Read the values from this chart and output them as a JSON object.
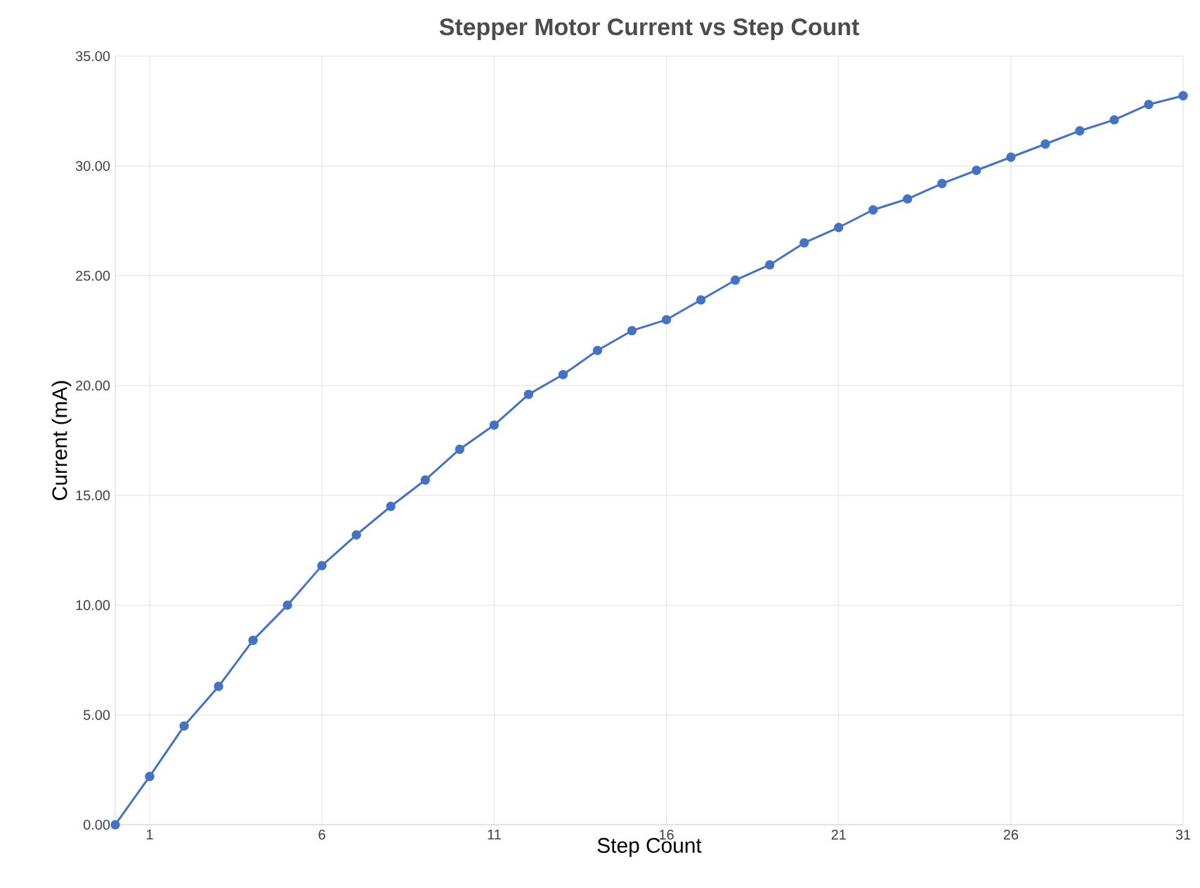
{
  "chart_data": {
    "type": "line",
    "title": "Stepper Motor Current vs Step Count",
    "xlabel": "Step Count",
    "ylabel": "Current (mA)",
    "x": [
      0,
      1,
      2,
      3,
      4,
      5,
      6,
      7,
      8,
      9,
      10,
      11,
      12,
      13,
      14,
      15,
      16,
      17,
      18,
      19,
      20,
      21,
      22,
      23,
      24,
      25,
      26,
      27,
      28,
      29,
      30,
      31
    ],
    "series": [
      {
        "color": "#4472c4",
        "values": [
          0,
          2.2,
          4.5,
          6.3,
          8.4,
          10.0,
          11.8,
          13.2,
          14.5,
          15.7,
          17.1,
          18.2,
          19.6,
          20.5,
          21.6,
          22.5,
          23.0,
          23.9,
          24.8,
          25.5,
          26.5,
          27.2,
          28.0,
          28.5,
          29.2,
          29.8,
          30.4,
          31.0,
          31.6,
          32.1,
          32.8,
          33.2
        ]
      }
    ],
    "xlim": [
      0,
      31
    ],
    "ylim": [
      0,
      35
    ],
    "xticks": [
      1,
      6,
      11,
      16,
      21,
      26,
      31
    ],
    "yticks": [
      {
        "value": 0,
        "label": "0.00"
      },
      {
        "value": 5,
        "label": "5.00"
      },
      {
        "value": 10,
        "label": "10.00"
      },
      {
        "value": 15,
        "label": "15.00"
      },
      {
        "value": 20,
        "label": "20.00"
      },
      {
        "value": 25,
        "label": "25.00"
      },
      {
        "value": 30,
        "label": "30.00"
      },
      {
        "value": 35,
        "label": "35.00"
      }
    ],
    "grid": true,
    "marker": "circle",
    "line_style": "solid"
  }
}
